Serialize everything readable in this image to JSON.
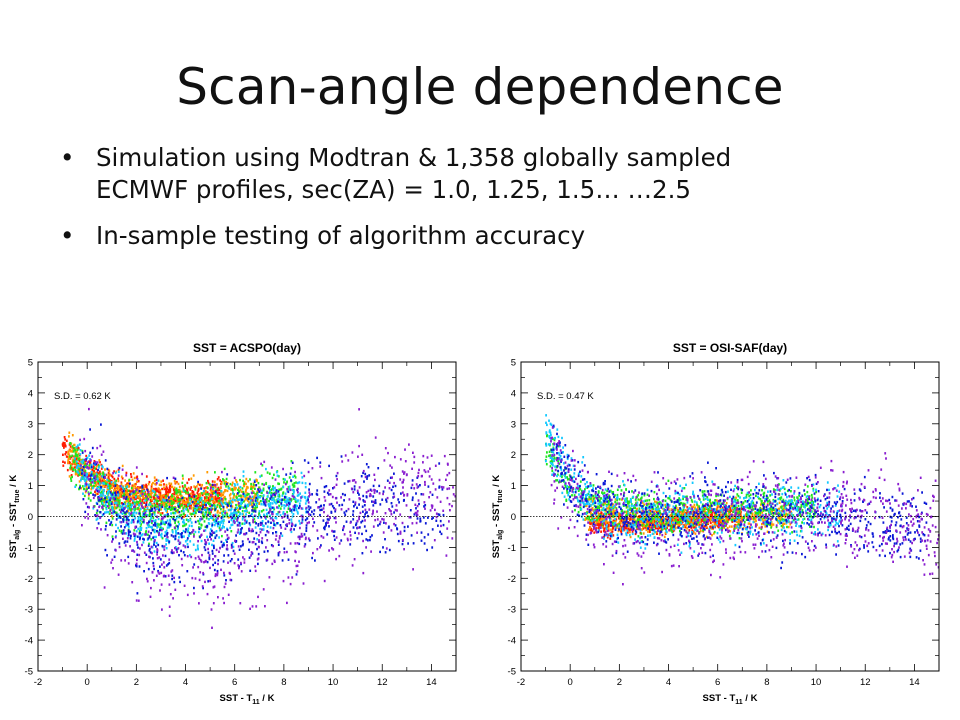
{
  "slide": {
    "title": "Scan-angle dependence",
    "bullets": [
      {
        "marker": "•",
        "lines": [
          "Simulation using Modtran & 1,358 globally sampled",
          "ECMWF profiles, sec(ZA) = 1.0, 1.25, 1.5… …2.5"
        ]
      },
      {
        "marker": "•",
        "lines": [
          "In-sample testing of algorithm accuracy"
        ]
      }
    ]
  },
  "chart_data": [
    {
      "type": "scatter",
      "title": "SST = ACSPO(day)",
      "annotation": "S.D. = 0.62 K",
      "xlabel": "SST - T",
      "xlabel_sub": "11",
      "xlabel_tail": " / K",
      "ylabel": "SST",
      "ylabel_sub1": "alg",
      "ylabel_mid": " - SST",
      "ylabel_sub2": "true",
      "ylabel_tail": " / K",
      "xlim": [
        -2,
        15
      ],
      "ylim": [
        -5,
        5
      ],
      "x_ticks": [
        "-2",
        "0",
        "2",
        "4",
        "6",
        "8",
        "10",
        "12",
        "14"
      ],
      "y_ticks": [
        "5",
        "4",
        "3",
        "2",
        "1",
        "0",
        "-1",
        "-2",
        "-3",
        "-4",
        "-5"
      ],
      "reference_line_y": 0,
      "colors": [
        "#ff1a00",
        "#ff9a00",
        "#1ee51e",
        "#14c9ff",
        "#0a18d6",
        "#8a1fd0"
      ],
      "series_trends": [
        {
          "color_index": 0,
          "x_range": [
            -1.0,
            5.5
          ],
          "center_at_x": [
            [
              -1,
              2.2
            ],
            [
              0,
              1.4
            ],
            [
              1,
              0.9
            ],
            [
              2,
              0.7
            ],
            [
              4,
              0.6
            ],
            [
              5.5,
              0.7
            ]
          ],
          "spread": 0.25
        },
        {
          "color_index": 1,
          "x_range": [
            -0.8,
            7
          ],
          "center_at_x": [
            [
              -0.8,
              2.1
            ],
            [
              0,
              1.3
            ],
            [
              1,
              0.8
            ],
            [
              3,
              0.6
            ],
            [
              5,
              0.6
            ],
            [
              7,
              0.7
            ]
          ],
          "spread": 0.3
        },
        {
          "color_index": 2,
          "x_range": [
            -0.7,
            8.5
          ],
          "center_at_x": [
            [
              -0.7,
              2.0
            ],
            [
              0,
              1.1
            ],
            [
              1,
              0.4
            ],
            [
              3,
              0.1
            ],
            [
              5,
              0.3
            ],
            [
              8.5,
              0.9
            ]
          ],
          "spread": 0.4
        },
        {
          "color_index": 3,
          "x_range": [
            -0.5,
            9
          ],
          "center_at_x": [
            [
              -0.5,
              1.9
            ],
            [
              0.5,
              0.8
            ],
            [
              2,
              -0.1
            ],
            [
              4,
              -0.3
            ],
            [
              6,
              0.1
            ],
            [
              9,
              0.6
            ]
          ],
          "spread": 0.45
        },
        {
          "color_index": 4,
          "x_range": [
            -0.3,
            14.5
          ],
          "center_at_x": [
            [
              -0.3,
              1.7
            ],
            [
              1,
              0.3
            ],
            [
              2,
              -0.4
            ],
            [
              4,
              -0.7
            ],
            [
              6,
              -0.4
            ],
            [
              8,
              0.1
            ],
            [
              11,
              0.3
            ],
            [
              14.5,
              0.0
            ]
          ],
          "spread": 0.75
        },
        {
          "color_index": 5,
          "x_range": [
            -0.3,
            15
          ],
          "center_at_x": [
            [
              -0.3,
              1.5
            ],
            [
              1,
              -0.2
            ],
            [
              2.5,
              -1.0
            ],
            [
              4,
              -1.3
            ],
            [
              6,
              -0.9
            ],
            [
              8,
              -0.3
            ],
            [
              11,
              0.4
            ],
            [
              14,
              0.8
            ],
            [
              15,
              0.2
            ]
          ],
          "spread": 1.0
        }
      ]
    },
    {
      "type": "scatter",
      "title": "SST = OSI-SAF(day)",
      "annotation": "S.D. = 0.47 K",
      "xlabel": "SST - T",
      "xlabel_sub": "11",
      "xlabel_tail": " / K",
      "ylabel": "SST",
      "ylabel_sub1": "alg",
      "ylabel_mid": " - SST",
      "ylabel_sub2": "true",
      "ylabel_tail": " / K",
      "xlim": [
        -2,
        15
      ],
      "ylim": [
        -5,
        5
      ],
      "x_ticks": [
        "-2",
        "0",
        "2",
        "4",
        "6",
        "8",
        "10",
        "12",
        "14"
      ],
      "y_ticks": [
        "5",
        "4",
        "3",
        "2",
        "1",
        "0",
        "-1",
        "-2",
        "-3",
        "-4",
        "-5"
      ],
      "reference_line_y": 0,
      "colors": [
        "#ff1a00",
        "#ff9a00",
        "#1ee51e",
        "#14c9ff",
        "#0a18d6",
        "#8a1fd0"
      ],
      "series_trends": [
        {
          "color_index": 0,
          "x_range": [
            0.8,
            7
          ],
          "center_at_x": [
            [
              0.8,
              -0.1
            ],
            [
              1.5,
              -0.25
            ],
            [
              3,
              -0.2
            ],
            [
              5,
              -0.1
            ],
            [
              7,
              0.0
            ]
          ],
          "spread": 0.18
        },
        {
          "color_index": 1,
          "x_range": [
            0.6,
            9
          ],
          "center_at_x": [
            [
              0.6,
              0.2
            ],
            [
              1.5,
              0.0
            ],
            [
              3,
              -0.05
            ],
            [
              6,
              0.0
            ],
            [
              9,
              0.1
            ]
          ],
          "spread": 0.25
        },
        {
          "color_index": 2,
          "x_range": [
            -1,
            10
          ],
          "center_at_x": [
            [
              -1,
              2.2
            ],
            [
              0,
              0.9
            ],
            [
              1,
              0.4
            ],
            [
              3,
              0.2
            ],
            [
              6,
              0.2
            ],
            [
              10,
              0.3
            ]
          ],
          "spread": 0.35
        },
        {
          "color_index": 3,
          "x_range": [
            -1,
            11
          ],
          "center_at_x": [
            [
              -1,
              2.5
            ],
            [
              0,
              1.2
            ],
            [
              1,
              0.3
            ],
            [
              3,
              0.0
            ],
            [
              7,
              0.1
            ],
            [
              11,
              0.1
            ]
          ],
          "spread": 0.45
        },
        {
          "color_index": 4,
          "x_range": [
            -0.8,
            14.5
          ],
          "center_at_x": [
            [
              -0.8,
              2.3
            ],
            [
              0.5,
              0.6
            ],
            [
              2,
              0.1
            ],
            [
              5,
              0.1
            ],
            [
              8,
              0.2
            ],
            [
              11,
              0.0
            ],
            [
              14.5,
              -0.3
            ]
          ],
          "spread": 0.6
        },
        {
          "color_index": 5,
          "x_range": [
            -0.8,
            15
          ],
          "center_at_x": [
            [
              -0.8,
              2.0
            ],
            [
              1,
              0.0
            ],
            [
              3,
              -0.3
            ],
            [
              6,
              -0.2
            ],
            [
              9,
              0.1
            ],
            [
              12,
              0.2
            ],
            [
              15,
              -0.6
            ]
          ],
          "spread": 0.75
        }
      ]
    }
  ]
}
